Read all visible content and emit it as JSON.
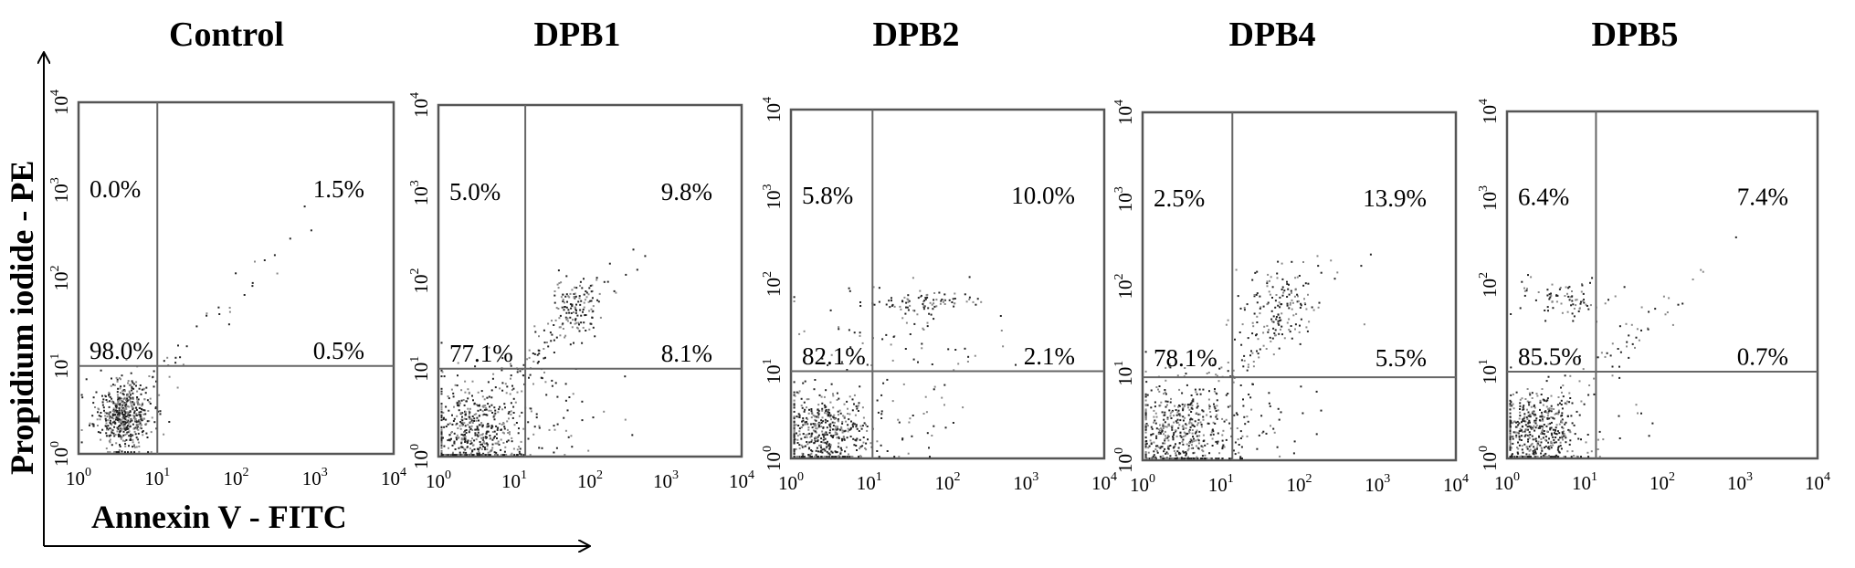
{
  "axes": {
    "x_title": "Annexin V - FITC",
    "y_title": "Propidium iodide - PE"
  },
  "chart_data": [
    {
      "type": "scatter",
      "title": "Control",
      "xlabel": "Annexin V - FITC",
      "ylabel": "Propidium iodide - PE",
      "xscale": "log",
      "yscale": "log",
      "xlim": [
        1,
        10000
      ],
      "ylim": [
        1,
        10000
      ],
      "x_ticks": [
        "10^0",
        "10^1",
        "10^2",
        "10^3",
        "10^4"
      ],
      "y_ticks": [
        "10^0",
        "10^1",
        "10^2",
        "10^3",
        "10^4"
      ],
      "gate": {
        "x": 10,
        "y": 10
      },
      "quadrants": {
        "upper_left": "0.0%",
        "upper_right": "1.5%",
        "lower_left": "98.0%",
        "lower_right": "0.5%"
      }
    },
    {
      "type": "scatter",
      "title": "DPB1",
      "xscale": "log",
      "yscale": "log",
      "xlim": [
        1,
        10000
      ],
      "ylim": [
        1,
        10000
      ],
      "x_ticks": [
        "10^0",
        "10^1",
        "10^2",
        "10^3",
        "10^4"
      ],
      "y_ticks": [
        "10^0",
        "10^1",
        "10^2",
        "10^3",
        "10^4"
      ],
      "gate": {
        "x": 14,
        "y": 10
      },
      "quadrants": {
        "upper_left": "5.0%",
        "upper_right": "9.8%",
        "lower_left": "77.1%",
        "lower_right": "8.1%"
      }
    },
    {
      "type": "scatter",
      "title": "DPB2",
      "xscale": "log",
      "yscale": "log",
      "xlim": [
        1,
        10000
      ],
      "ylim": [
        1,
        10000
      ],
      "x_ticks": [
        "10^0",
        "10^1",
        "10^2",
        "10^3",
        "10^4"
      ],
      "y_ticks": [
        "10^0",
        "10^1",
        "10^2",
        "10^3",
        "10^4"
      ],
      "gate": {
        "x": 11,
        "y": 10
      },
      "quadrants": {
        "upper_left": "5.8%",
        "upper_right": "10.0%",
        "lower_left": "82.1%",
        "lower_right": "2.1%"
      }
    },
    {
      "type": "scatter",
      "title": "DPB4",
      "xscale": "log",
      "yscale": "log",
      "xlim": [
        1,
        10000
      ],
      "ylim": [
        1,
        10000
      ],
      "x_ticks": [
        "10^0",
        "10^1",
        "10^2",
        "10^3",
        "10^4"
      ],
      "y_ticks": [
        "10^0",
        "10^1",
        "10^2",
        "10^3",
        "10^4"
      ],
      "gate": {
        "x": 14,
        "y": 9
      },
      "quadrants": {
        "upper_left": "2.5%",
        "upper_right": "13.9%",
        "lower_left": "78.1%",
        "lower_right": "5.5%"
      }
    },
    {
      "type": "scatter",
      "title": "DPB5",
      "xscale": "log",
      "yscale": "log",
      "xlim": [
        1,
        10000
      ],
      "ylim": [
        1,
        10000
      ],
      "x_ticks": [
        "10^0",
        "10^1",
        "10^2",
        "10^3",
        "10^4"
      ],
      "y_ticks": [
        "10^0",
        "10^1",
        "10^2",
        "10^3",
        "10^4"
      ],
      "gate": {
        "x": 14,
        "y": 10
      },
      "quadrants": {
        "upper_left": "6.4%",
        "upper_right": "7.4%",
        "lower_left": "85.5%",
        "lower_right": "0.7%"
      }
    }
  ]
}
